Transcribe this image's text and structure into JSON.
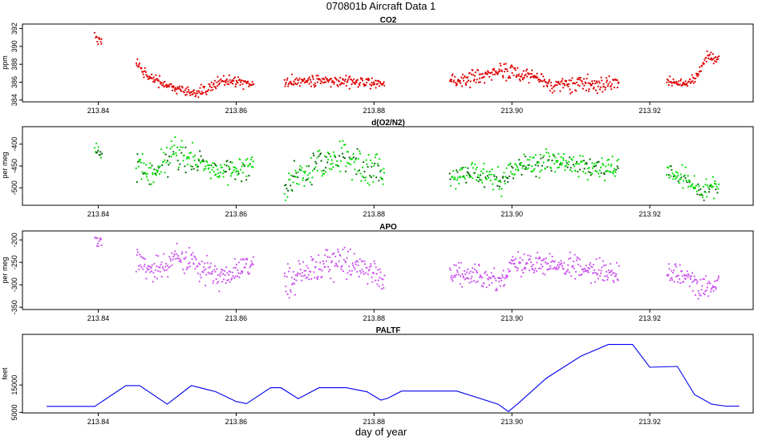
{
  "figure": {
    "title": "070801b   Aircraft Data 1",
    "xlabel": "day of year"
  },
  "chart_data": [
    {
      "type": "scatter",
      "title": "CO2",
      "ylabel": "ppm",
      "color": "#e00000",
      "xlim": [
        213.829,
        213.935
      ],
      "ylim": [
        383.8,
        392.5
      ],
      "xticks": [
        213.84,
        213.86,
        213.88,
        213.9,
        213.92
      ],
      "xtick_labels": [
        "213.84",
        "213.86",
        "213.88",
        "213.90",
        "213.92"
      ],
      "yticks": [
        384,
        386,
        388,
        390,
        392
      ],
      "ytick_labels": [
        "384",
        "386",
        "388",
        "390",
        "392"
      ],
      "segments": [
        {
          "x0": 213.8395,
          "x1": 213.8405,
          "levels": [
            [
              213.8395,
              390.8
            ],
            [
              213.8405,
              390.5
            ]
          ],
          "noise": 0.3
        },
        {
          "x0": 213.8455,
          "x1": 213.8625,
          "levels": [
            [
              213.8455,
              388.0
            ],
            [
              213.8475,
              386.5
            ],
            [
              213.85,
              385.7
            ],
            [
              213.852,
              385.1
            ],
            [
              213.8535,
              384.7
            ],
            [
              213.856,
              385.3
            ],
            [
              213.858,
              386.2
            ],
            [
              213.86,
              386.0
            ],
            [
              213.8625,
              385.7
            ]
          ],
          "noise": 0.3
        },
        {
          "x0": 213.867,
          "x1": 213.8815,
          "levels": [
            [
              213.867,
              386.0
            ],
            [
              213.875,
              386.2
            ],
            [
              213.8815,
              385.8
            ]
          ],
          "noise": 0.3
        },
        {
          "x0": 213.891,
          "x1": 213.9155,
          "levels": [
            [
              213.891,
              385.9
            ],
            [
              213.894,
              386.5
            ],
            [
              213.899,
              387.3
            ],
            [
              213.904,
              386.4
            ],
            [
              213.906,
              385.5
            ],
            [
              213.91,
              385.8
            ],
            [
              213.9155,
              385.9
            ]
          ],
          "noise": 0.45
        },
        {
          "x0": 213.9225,
          "x1": 213.93,
          "levels": [
            [
              213.9225,
              386.3
            ],
            [
              213.9245,
              385.8
            ],
            [
              213.9265,
              386.2
            ],
            [
              213.9285,
              389.0
            ],
            [
              213.93,
              388.2
            ]
          ],
          "noise": 0.3
        }
      ]
    },
    {
      "type": "scatter",
      "title": "d(O2/N2)",
      "ylabel": "per meg",
      "color": "#00dd00",
      "xlim": [
        213.829,
        213.935
      ],
      "ylim": [
        -540,
        -360
      ],
      "xticks": [
        213.84,
        213.86,
        213.88,
        213.9,
        213.92
      ],
      "xtick_labels": [
        "213.84",
        "213.86",
        "213.88",
        "213.90",
        "213.92"
      ],
      "yticks": [
        -500,
        -450,
        -400
      ],
      "ytick_labels": [
        "-500",
        "-450",
        "-400"
      ],
      "segments": [
        {
          "x0": 213.8395,
          "x1": 213.8405,
          "levels": [
            [
              213.8395,
              -420
            ],
            [
              213.8405,
              -425
            ]
          ],
          "noise": 10
        },
        {
          "x0": 213.8455,
          "x1": 213.8625,
          "levels": [
            [
              213.8455,
              -445
            ],
            [
              213.848,
              -470
            ],
            [
              213.851,
              -415
            ],
            [
              213.854,
              -440
            ],
            [
              213.858,
              -460
            ],
            [
              213.8625,
              -445
            ]
          ],
          "noise": 15
        },
        {
          "x0": 213.867,
          "x1": 213.8815,
          "levels": [
            [
              213.867,
              -490
            ],
            [
              213.87,
              -465
            ],
            [
              213.874,
              -430
            ],
            [
              213.878,
              -450
            ],
            [
              213.8815,
              -465
            ]
          ],
          "noise": 18
        },
        {
          "x0": 213.891,
          "x1": 213.9155,
          "levels": [
            [
              213.891,
              -475
            ],
            [
              213.895,
              -465
            ],
            [
              213.8985,
              -485
            ],
            [
              213.901,
              -445
            ],
            [
              213.906,
              -440
            ],
            [
              213.9155,
              -460
            ]
          ],
          "noise": 13
        },
        {
          "x0": 213.9225,
          "x1": 213.93,
          "levels": [
            [
              213.9225,
              -470
            ],
            [
              213.925,
              -470
            ],
            [
              213.9275,
              -510
            ],
            [
              213.93,
              -490
            ]
          ],
          "noise": 12
        }
      ]
    },
    {
      "type": "scatter",
      "title": "APO",
      "ylabel": "per meg",
      "color": "#cc55ee",
      "xlim": [
        213.829,
        213.935
      ],
      "ylim": [
        -355,
        -180
      ],
      "xticks": [
        213.84,
        213.86,
        213.88,
        213.9,
        213.92
      ],
      "xtick_labels": [
        "213.84",
        "213.86",
        "213.88",
        "213.90",
        "213.92"
      ],
      "yticks": [
        -350,
        -300,
        -250,
        -200
      ],
      "ytick_labels": [
        "-350",
        "-300",
        "-250",
        "-200"
      ],
      "segments": [
        {
          "x0": 213.8395,
          "x1": 213.8405,
          "levels": [
            [
              213.8395,
              -195
            ],
            [
              213.8405,
              -205
            ]
          ],
          "noise": 8
        },
        {
          "x0": 213.8455,
          "x1": 213.8625,
          "levels": [
            [
              213.8455,
              -250
            ],
            [
              213.848,
              -275
            ],
            [
              213.851,
              -235
            ],
            [
              213.854,
              -255
            ],
            [
              213.858,
              -280
            ],
            [
              213.8625,
              -260
            ]
          ],
          "noise": 15
        },
        {
          "x0": 213.867,
          "x1": 213.8815,
          "levels": [
            [
              213.867,
              -300
            ],
            [
              213.87,
              -275
            ],
            [
              213.874,
              -245
            ],
            [
              213.878,
              -265
            ],
            [
              213.8815,
              -290
            ]
          ],
          "noise": 18
        },
        {
          "x0": 213.891,
          "x1": 213.9155,
          "levels": [
            [
              213.891,
              -275
            ],
            [
              213.895,
              -275
            ],
            [
              213.8985,
              -295
            ],
            [
              213.9,
              -250
            ],
            [
              213.906,
              -255
            ],
            [
              213.9155,
              -275
            ]
          ],
          "noise": 13
        },
        {
          "x0": 213.9225,
          "x1": 213.93,
          "levels": [
            [
              213.9225,
              -280
            ],
            [
              213.925,
              -280
            ],
            [
              213.9275,
              -310
            ],
            [
              213.93,
              -295
            ]
          ],
          "noise": 12
        }
      ]
    },
    {
      "type": "line",
      "title": "PALTF",
      "ylabel": "feet",
      "color": "#0000ee",
      "xlim": [
        213.829,
        213.935
      ],
      "ylim": [
        4800,
        33500
      ],
      "xticks": [
        213.84,
        213.86,
        213.88,
        213.9,
        213.92
      ],
      "xtick_labels": [
        "213.84",
        "213.86",
        "213.88",
        "213.90",
        "213.92"
      ],
      "yticks": [
        5000,
        15000
      ],
      "ytick_labels": [
        "5000",
        "15000"
      ],
      "x": [
        213.8325,
        213.8395,
        213.844,
        213.846,
        213.85,
        213.8535,
        213.857,
        213.86,
        213.8615,
        213.865,
        213.8665,
        213.869,
        213.872,
        213.876,
        213.879,
        213.881,
        213.882,
        213.884,
        213.892,
        213.898,
        213.8995,
        213.901,
        213.905,
        213.91,
        213.914,
        213.9175,
        213.92,
        213.924,
        213.9265,
        213.929,
        213.931,
        213.933
      ],
      "y": [
        7200,
        7200,
        14800,
        14800,
        8000,
        14800,
        12600,
        9000,
        8200,
        14000,
        14000,
        10000,
        14000,
        14000,
        12500,
        9500,
        10200,
        12800,
        12800,
        8000,
        5300,
        8500,
        17500,
        25500,
        29800,
        29800,
        21500,
        21800,
        11500,
        8000,
        7300,
        7300
      ]
    }
  ]
}
